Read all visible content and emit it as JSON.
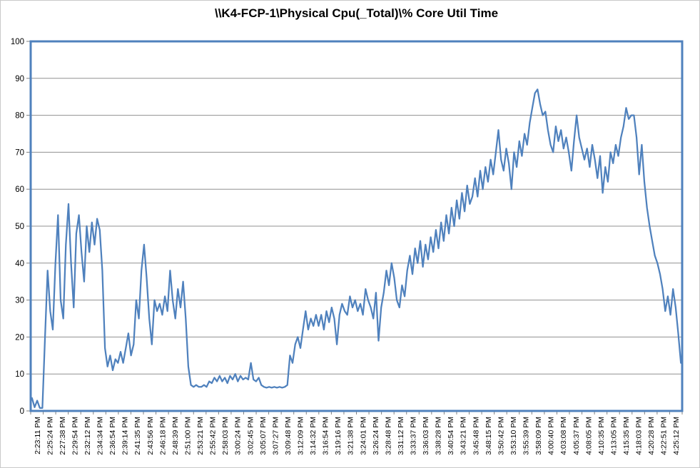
{
  "chart_data": {
    "type": "line",
    "title": "\\\\K4-FCP-1\\Physical Cpu(_Total)\\% Core Util Time",
    "xlabel": "",
    "ylabel": "",
    "ylim": [
      0,
      100
    ],
    "ytick_interval": 10,
    "ytick_labels": [
      "0",
      "10",
      "20",
      "30",
      "40",
      "50",
      "60",
      "70",
      "80",
      "90",
      "100"
    ],
    "grid": true,
    "legend": "none",
    "line_color": "#4F81BD",
    "plot_border_color": "#4F81BD",
    "gridline_color": "#909090",
    "tick_color": "#808080",
    "text_color": "#000000",
    "background": "#FFFFFF",
    "x_tick_labels": [
      "2:23:11 PM",
      "2:25:24 PM",
      "2:27:38 PM",
      "2:29:54 PM",
      "2:32:12 PM",
      "2:34:34 PM",
      "2:36:54 PM",
      "2:39:14 PM",
      "2:41:35 PM",
      "2:43:56 PM",
      "2:46:18 PM",
      "2:48:39 PM",
      "2:51:00 PM",
      "2:53:21 PM",
      "2:55:42 PM",
      "2:58:03 PM",
      "3:00:24 PM",
      "3:02:45 PM",
      "3:05:07 PM",
      "3:07:27 PM",
      "3:09:48 PM",
      "3:12:09 PM",
      "3:14:32 PM",
      "3:16:54 PM",
      "3:19:16 PM",
      "3:21:38 PM",
      "3:24:01 PM",
      "3:26:24 PM",
      "3:28:48 PM",
      "3:31:12 PM",
      "3:33:37 PM",
      "3:36:03 PM",
      "3:38:28 PM",
      "3:40:54 PM",
      "3:43:21 PM",
      "3:45:48 PM",
      "3:48:15 PM",
      "3:50:42 PM",
      "3:53:10 PM",
      "3:55:39 PM",
      "3:58:09 PM",
      "4:00:40 PM",
      "4:03:08 PM",
      "4:05:37 PM",
      "4:08:05 PM",
      "4:10:35 PM",
      "4:13:05 PM",
      "4:15:35 PM",
      "4:18:03 PM",
      "4:20:28 PM",
      "4:22:51 PM",
      "4:25:12 PM"
    ],
    "series": [
      {
        "values": [
          3.5,
          1,
          2.8,
          0.8,
          0.8,
          20,
          38,
          27,
          22,
          40,
          53,
          30,
          25,
          45,
          56,
          40,
          28,
          48,
          53,
          43,
          35,
          50,
          43,
          51,
          45,
          52,
          49,
          38,
          17,
          12,
          15,
          11,
          14,
          13,
          16,
          13,
          17,
          21,
          15,
          18,
          30,
          25,
          38,
          45,
          36,
          25,
          18,
          30,
          27,
          29,
          26,
          31,
          27,
          38,
          30,
          25,
          33,
          28,
          35,
          25,
          12,
          7,
          6.5,
          7,
          6.5,
          6.5,
          7,
          6.5,
          8,
          7.5,
          9,
          8,
          9.5,
          8,
          9,
          7.5,
          9.5,
          8.5,
          10,
          8,
          9.5,
          8.5,
          9,
          8.5,
          13,
          8.5,
          8,
          9,
          7,
          6.5,
          6.3,
          6.5,
          6.3,
          6.5,
          6.3,
          6.5,
          6.3,
          6.5,
          7,
          15,
          13,
          18,
          20,
          17,
          22,
          27,
          22,
          25,
          23,
          26,
          23,
          26,
          22,
          27,
          24,
          28,
          25,
          18,
          26,
          29,
          27,
          26,
          31,
          28,
          30,
          27,
          29,
          26,
          33,
          30,
          28,
          25,
          32,
          19,
          28,
          32,
          38,
          34,
          40,
          36,
          30,
          28,
          34,
          31,
          38,
          42,
          37,
          44,
          40,
          46,
          39,
          45,
          41,
          47,
          43,
          49,
          44,
          51,
          46,
          53,
          48,
          55,
          50,
          57,
          52,
          59,
          54,
          61,
          56,
          58,
          63,
          58,
          65,
          60,
          66,
          62,
          68,
          64,
          70,
          76,
          68,
          65,
          71,
          67,
          60,
          70,
          66,
          73,
          69,
          75,
          72,
          78,
          82,
          86,
          87,
          83,
          80,
          81,
          76,
          72,
          70,
          77,
          73,
          76,
          71,
          74,
          70,
          65,
          73,
          80,
          74,
          71,
          68,
          71,
          66,
          72,
          68,
          63,
          69,
          59,
          66,
          62,
          70,
          67,
          72,
          69,
          74,
          77,
          82,
          79,
          80,
          80,
          74,
          64,
          72,
          62,
          55,
          50,
          46,
          42,
          40,
          37,
          33,
          27,
          31,
          26,
          33,
          28,
          21,
          13
        ]
      }
    ]
  }
}
